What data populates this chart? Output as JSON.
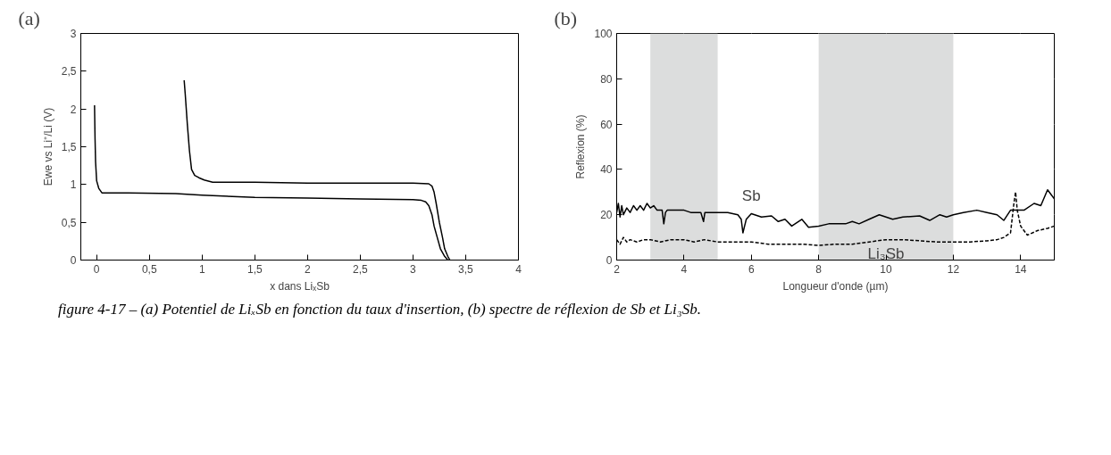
{
  "chart_data": [
    {
      "type": "line",
      "xlabel": "x dans LiₓSb",
      "ylabel": "Ewe vs Li⁺/Li (V)",
      "xlim": [
        -0.15,
        4
      ],
      "ylim": [
        0,
        3
      ],
      "xticks": [
        0,
        {
          "value": 0.5,
          "label": "0,5"
        },
        1,
        {
          "value": 1.5,
          "label": "1,5"
        },
        2,
        {
          "value": 2.5,
          "label": "2,5"
        },
        3,
        {
          "value": 3.5,
          "label": "3,5"
        },
        4
      ],
      "yticks": [
        0,
        {
          "value": 0.5,
          "label": "0,5"
        },
        1,
        {
          "value": 1.5,
          "label": "1,5"
        },
        2,
        {
          "value": 2.5,
          "label": "2,5"
        },
        3
      ],
      "grid": false,
      "line_style": "solid",
      "annotations": [
        "(a)"
      ],
      "series": [
        {
          "color": "#000000",
          "x": [
            -0.02,
            -0.015,
            -0.01,
            0.0,
            0.02,
            0.05,
            0.3,
            0.75,
            1.0,
            1.5,
            2.0,
            2.5,
            3.0,
            3.08,
            3.12,
            3.15,
            3.18,
            3.2,
            3.23,
            3.26,
            3.3,
            3.33
          ],
          "values": [
            2.05,
            1.6,
            1.3,
            1.05,
            0.95,
            0.89,
            0.89,
            0.88,
            0.86,
            0.83,
            0.82,
            0.81,
            0.8,
            0.79,
            0.77,
            0.72,
            0.6,
            0.45,
            0.3,
            0.15,
            0.05,
            0.0
          ]
        },
        {
          "color": "#000000",
          "x": [
            0.83,
            0.84,
            0.86,
            0.88,
            0.9,
            0.93,
            0.97,
            1.02,
            1.1,
            1.5,
            2.0,
            2.5,
            3.0,
            3.15,
            3.18,
            3.2,
            3.22,
            3.25,
            3.28,
            3.3,
            3.33,
            3.35
          ],
          "values": [
            2.38,
            2.2,
            1.8,
            1.45,
            1.2,
            1.12,
            1.09,
            1.06,
            1.03,
            1.03,
            1.02,
            1.02,
            1.02,
            1.01,
            0.98,
            0.9,
            0.75,
            0.5,
            0.3,
            0.15,
            0.05,
            0.0
          ]
        }
      ]
    },
    {
      "type": "line",
      "xlabel": "Longueur d'onde (µm)",
      "ylabel": "Reflexion (%)",
      "xlim": [
        2,
        15
      ],
      "ylim": [
        0,
        100
      ],
      "xticks": [
        2,
        4,
        6,
        8,
        10,
        12,
        14
      ],
      "yticks": [
        0,
        20,
        40,
        60,
        80,
        100
      ],
      "grid": true,
      "bands": [
        {
          "axis": "x",
          "from": 3,
          "to": 5,
          "color": "#dcdddd"
        },
        {
          "axis": "x",
          "from": 8,
          "to": 12,
          "color": "#dcdddd"
        }
      ],
      "annotations": [
        "(b)",
        "Sb",
        "Li₃Sb",
        "figure 4-17 – (a) Potentiel de LiₓSb en fonction du taux d'insertion, (b) spectre de réflexion de Sb et Li₃Sb."
      ],
      "series": [
        {
          "color": "#000000",
          "line_style": "solid",
          "x": [
            2.0,
            2.05,
            2.1,
            2.15,
            2.2,
            2.3,
            2.4,
            2.5,
            2.6,
            2.7,
            2.8,
            2.9,
            3.0,
            3.1,
            3.2,
            3.35,
            3.4,
            3.45,
            3.5,
            3.8,
            4.0,
            4.2,
            4.5,
            4.58,
            4.62,
            4.65,
            5.0,
            5.3,
            5.6,
            5.7,
            5.75,
            5.8,
            5.85,
            6.0,
            6.3,
            6.6,
            6.8,
            7.0,
            7.2,
            7.5,
            7.7,
            8.0,
            8.3,
            8.6,
            8.8,
            9.0,
            9.2,
            9.5,
            9.8,
            10.2,
            10.5,
            11.0,
            11.3,
            11.6,
            11.8,
            12.0,
            12.3,
            12.7,
            13.0,
            13.3,
            13.5,
            13.7,
            14.1,
            14.4,
            14.6,
            14.8,
            15.0
          ],
          "values": [
            21,
            25,
            19,
            24,
            20,
            23,
            21,
            24,
            22,
            24,
            22,
            25,
            23,
            24,
            22,
            22,
            16,
            21,
            22,
            22,
            22,
            21,
            21,
            17,
            21,
            21,
            21,
            21,
            20,
            18,
            12,
            15,
            18,
            20.5,
            19,
            19.5,
            17,
            18,
            15,
            18,
            14.5,
            15,
            16,
            16,
            16,
            17,
            16,
            18,
            20,
            18,
            19,
            19.5,
            17.5,
            20,
            19,
            20,
            21,
            22,
            21,
            20,
            17.5,
            22,
            22,
            25,
            24,
            31,
            27
          ]
        },
        {
          "color": "#000000",
          "line_style": "dashed",
          "x": [
            2.0,
            2.1,
            2.2,
            2.3,
            2.4,
            2.6,
            2.8,
            3.0,
            3.3,
            3.6,
            4.0,
            4.3,
            4.6,
            5.0,
            5.5,
            6.0,
            6.5,
            7.0,
            7.5,
            8.0,
            8.5,
            9.0,
            9.5,
            10.0,
            10.5,
            11.0,
            11.5,
            12.0,
            12.5,
            13.0,
            13.3,
            13.5,
            13.7,
            13.8,
            13.85,
            13.9,
            14.0,
            14.2,
            14.5,
            14.8,
            15.0
          ],
          "values": [
            9,
            7,
            10,
            8,
            9,
            8,
            9,
            9,
            8,
            9,
            9,
            8,
            9,
            8,
            8,
            8,
            7,
            7,
            7,
            6.5,
            7,
            7,
            8,
            9,
            9,
            8.5,
            8,
            8,
            8,
            8.5,
            9,
            10,
            12,
            25,
            30,
            22,
            15,
            11,
            13,
            14,
            15
          ]
        }
      ]
    }
  ]
}
